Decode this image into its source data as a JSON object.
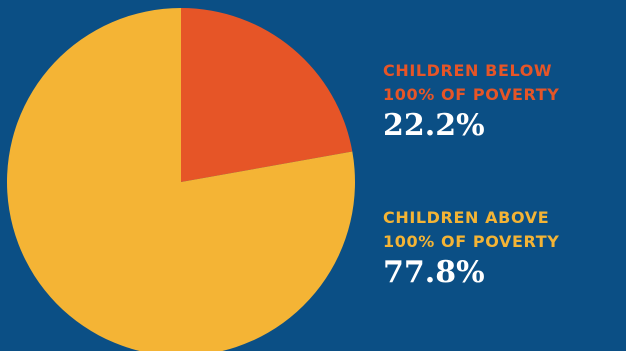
{
  "colors": {
    "background": "#0b4f85",
    "below_poverty": "#e65527",
    "above_poverty": "#f4b435",
    "value_text": "#ffffff"
  },
  "chart_data": {
    "type": "pie",
    "slices": [
      {
        "label": "CHILDREN BELOW\n100% OF POVERTY",
        "value": 22.2,
        "value_text": "22.2%",
        "color": "#e65527"
      },
      {
        "label": "CHILDREN ABOVE\n100% OF POVERTY",
        "value": 77.8,
        "value_text": "77.8%",
        "color": "#f4b435"
      }
    ],
    "start_angle": "12 o'clock",
    "direction": "clockwise",
    "legend_placement": "right"
  }
}
